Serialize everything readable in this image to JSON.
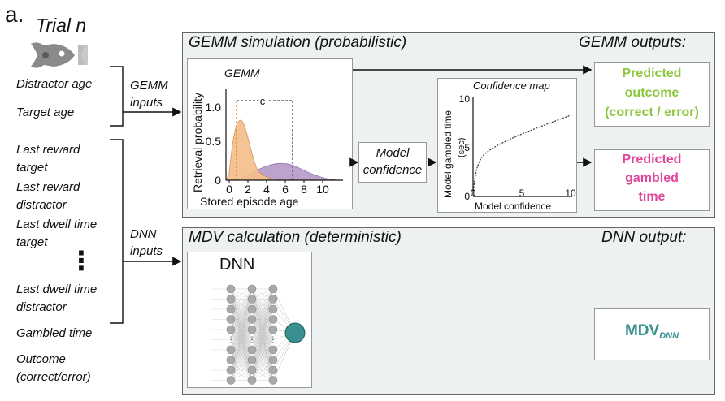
{
  "panel_label": "a.",
  "trial": {
    "title": "Trial n"
  },
  "inputs": {
    "top": [
      "Distractor age",
      "Target age"
    ],
    "bottom": [
      "Last reward",
      "target",
      "Last reward",
      "distractor",
      "Last dwell time",
      "target",
      "⋮",
      "Last dwell time",
      "distractor",
      "Gambled time",
      "Outcome",
      "(correct/error)"
    ]
  },
  "gemm_inputs": [
    "GEMM",
    "inputs"
  ],
  "dnn_inputs": [
    "DNN",
    "inputs"
  ],
  "gemm_panel": {
    "title": "GEMM simulation (probabilistic)",
    "outputs_title": "GEMM outputs:",
    "plot": {
      "title": "GEMM",
      "ylabel": "Retrieval probability",
      "xlabel": "Stored episode age",
      "yticks": [
        "1.0",
        "0.5",
        "0"
      ],
      "xticks": [
        "0",
        "2",
        "4",
        "6",
        "8",
        "10"
      ],
      "bracket_label": "c"
    },
    "model_confidence": [
      "Model",
      "confidence"
    ],
    "confidence_map": {
      "title": "Confidence map",
      "ylabel": "Model gambled time",
      "ylabel_unit": "(sec)",
      "xlabel": "Model confidence",
      "yticks": [
        "10",
        "5",
        "0"
      ],
      "xticks": [
        "0",
        "5",
        "10"
      ]
    },
    "output_outcome": [
      "Predicted",
      "outcome",
      "(correct / error)"
    ],
    "output_gambled": [
      "Predicted",
      "gambled",
      "time"
    ]
  },
  "dnn_panel": {
    "title": "MDV calculation (deterministic)",
    "outputs_title": "DNN output:",
    "net_title": "DNN",
    "output_main": "MDV",
    "output_sub": "DNN"
  },
  "colors": {
    "target": "#f2b27a",
    "distractor": "#a883c0",
    "outcome_green": "#8dc63f",
    "gambled_pink": "#e0469a",
    "mdv_teal": "#3a8f8f"
  }
}
